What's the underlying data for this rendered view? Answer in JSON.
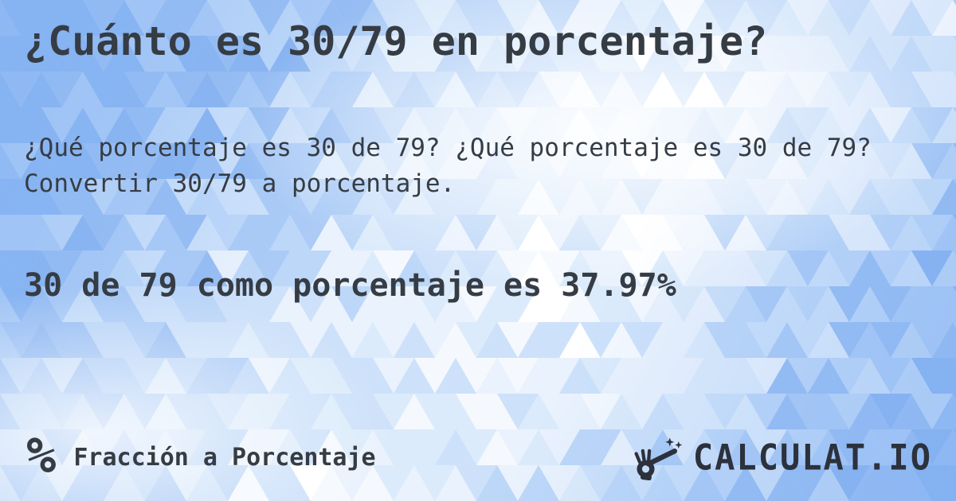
{
  "page": {
    "title": "¿Cuánto es 30/79 en porcentaje?",
    "description": "¿Qué porcentaje es 30 de 79? ¿Qué porcentaje es 30 de 79? Convertir 30/79 a porcentaje.",
    "answer": "30 de 79 como porcentaje es 37.97%"
  },
  "footer": {
    "category_icon": "%",
    "category_label": "Fracción a Porcentaje",
    "brand_text": "CALCULAT.IO"
  },
  "colors": {
    "text": "#363c44",
    "logo": "#2c313c",
    "background_light": "#ffffff",
    "background_blue": "#98bef3"
  }
}
